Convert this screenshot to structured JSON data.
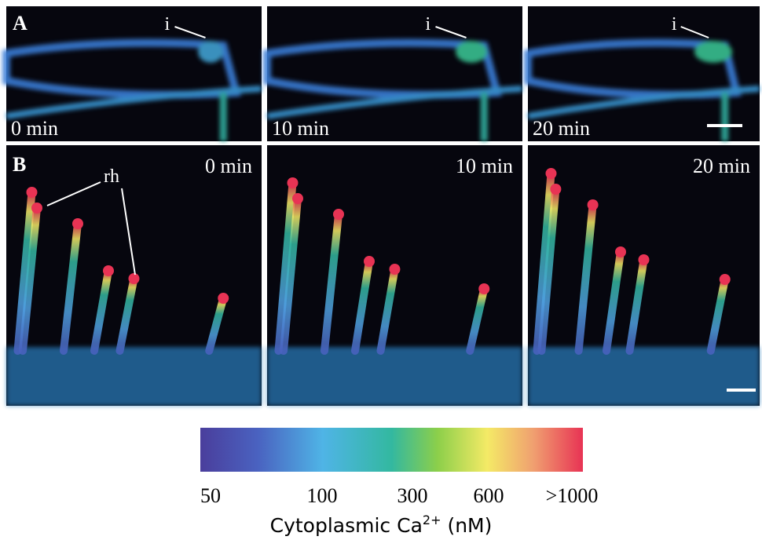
{
  "panels": [
    {
      "label": "A",
      "images": [
        {
          "time": "0 min",
          "annotation": "i"
        },
        {
          "time": "10 min",
          "annotation": "i"
        },
        {
          "time": "20 min",
          "annotation": "i"
        }
      ]
    },
    {
      "label": "B",
      "annotation": "rh",
      "images": [
        {
          "time": "0 min"
        },
        {
          "time": "10 min"
        },
        {
          "time": "20 min"
        }
      ]
    }
  ],
  "colorbar": {
    "ticks": [
      "50",
      "100",
      "300",
      "600",
      ">1000"
    ],
    "title": {
      "before": "Cytoplasmic Ca",
      "superscript": "2+",
      "after": " (nM)"
    }
  }
}
